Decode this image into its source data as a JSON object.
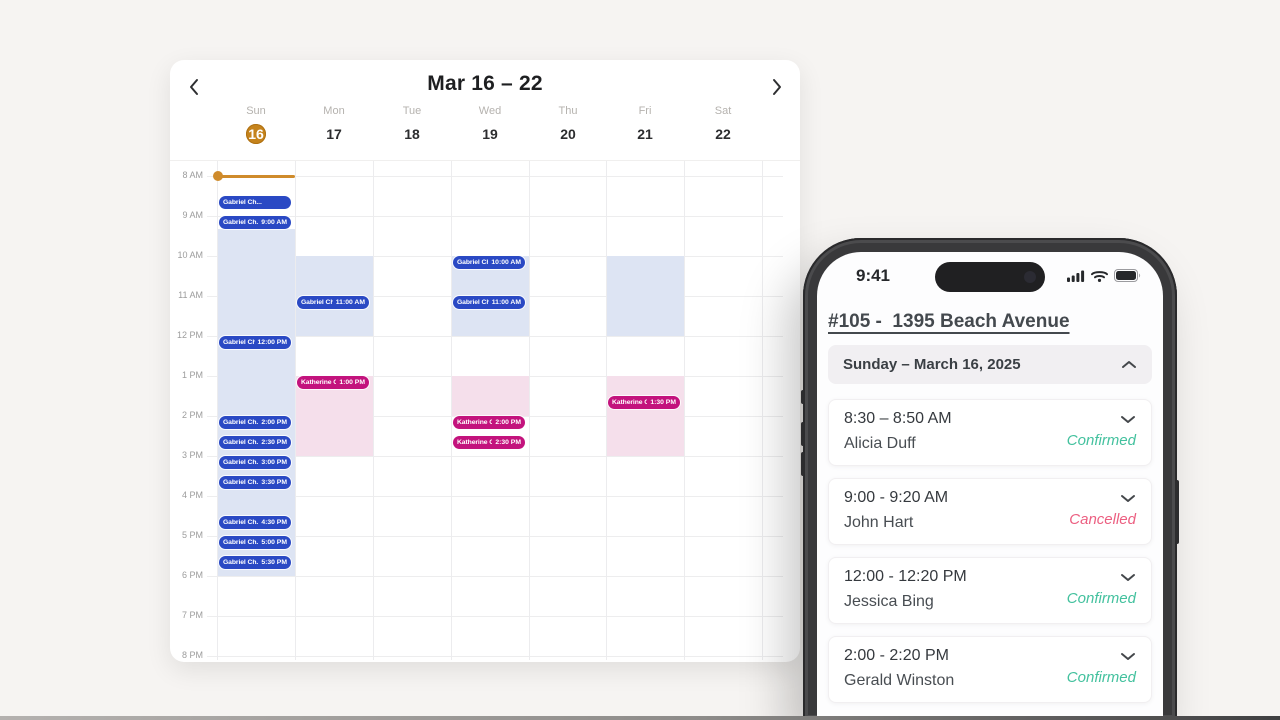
{
  "colors": {
    "accent_orange": "#cf8b2b",
    "event_blue": "#2a49c4",
    "event_magenta": "#c3137d",
    "band_blue": "#dde4f3",
    "band_pink": "#f5dfeb",
    "status_confirmed": "#43c19e",
    "status_cancelled": "#ec5f81",
    "active_day_badge": "#c5831c"
  },
  "calendar": {
    "title": "Mar 16 – 22",
    "prev_icon": "chevron-left",
    "next_icon": "chevron-right",
    "days": [
      {
        "name": "Sun",
        "number": "16",
        "active": true
      },
      {
        "name": "Mon",
        "number": "17",
        "active": false
      },
      {
        "name": "Tue",
        "number": "18",
        "active": false
      },
      {
        "name": "Wed",
        "number": "19",
        "active": false
      },
      {
        "name": "Thu",
        "number": "20",
        "active": false
      },
      {
        "name": "Fri",
        "number": "21",
        "active": false
      },
      {
        "name": "Sat",
        "number": "22",
        "active": false
      }
    ],
    "hours": [
      "8 AM",
      "9 AM",
      "10 AM",
      "11 AM",
      "12 PM",
      "1 PM",
      "2 PM",
      "3 PM",
      "4 PM",
      "5 PM",
      "6 PM",
      "7 PM",
      "8 PM"
    ],
    "now_indicator": {
      "day": "Sun",
      "time": "8:00"
    },
    "availability_bands": [
      {
        "day": "Sun",
        "start": "9:20",
        "end": "18:00",
        "kind": "blue"
      },
      {
        "day": "Mon",
        "start": "10:00",
        "end": "12:00",
        "kind": "blue"
      },
      {
        "day": "Mon",
        "start": "13:00",
        "end": "15:00",
        "kind": "pink"
      },
      {
        "day": "Wed",
        "start": "10:00",
        "end": "12:00",
        "kind": "blue"
      },
      {
        "day": "Wed",
        "start": "13:00",
        "end": "14:00",
        "kind": "pink"
      },
      {
        "day": "Fri",
        "start": "10:00",
        "end": "12:00",
        "kind": "blue"
      },
      {
        "day": "Fri",
        "start": "13:00",
        "end": "15:00",
        "kind": "pink"
      }
    ],
    "events": [
      {
        "day": "Sun",
        "start": "8:30",
        "title": "Gabriel Ch...",
        "time_label": "",
        "kind": "blue"
      },
      {
        "day": "Sun",
        "start": "9:00",
        "title": "Gabriel Ch...",
        "time_label": "9:00 AM",
        "kind": "blue"
      },
      {
        "day": "Sun",
        "start": "12:00",
        "title": "Gabriel Ch...",
        "time_label": "12:00 PM",
        "kind": "blue"
      },
      {
        "day": "Sun",
        "start": "14:00",
        "title": "Gabriel Ch...",
        "time_label": "2:00 PM",
        "kind": "blue"
      },
      {
        "day": "Sun",
        "start": "14:30",
        "title": "Gabriel Ch...",
        "time_label": "2:30 PM",
        "kind": "blue"
      },
      {
        "day": "Sun",
        "start": "15:00",
        "title": "Gabriel Ch...",
        "time_label": "3:00 PM",
        "kind": "blue"
      },
      {
        "day": "Sun",
        "start": "15:30",
        "title": "Gabriel Ch...",
        "time_label": "3:30 PM",
        "kind": "blue"
      },
      {
        "day": "Sun",
        "start": "16:30",
        "title": "Gabriel Ch...",
        "time_label": "4:30 PM",
        "kind": "blue"
      },
      {
        "day": "Sun",
        "start": "17:00",
        "title": "Gabriel Ch...",
        "time_label": "5:00 PM",
        "kind": "blue"
      },
      {
        "day": "Sun",
        "start": "17:30",
        "title": "Gabriel Ch...",
        "time_label": "5:30 PM",
        "kind": "blue"
      },
      {
        "day": "Mon",
        "start": "11:00",
        "title": "Gabriel Ch...",
        "time_label": "11:00 AM",
        "kind": "blue"
      },
      {
        "day": "Mon",
        "start": "13:00",
        "title": "Katherine Co...",
        "time_label": "1:00 PM",
        "kind": "magenta"
      },
      {
        "day": "Wed",
        "start": "10:00",
        "title": "Gabriel Ch...",
        "time_label": "10:00 AM",
        "kind": "blue"
      },
      {
        "day": "Wed",
        "start": "11:00",
        "title": "Gabriel Ch...",
        "time_label": "11:00 AM",
        "kind": "blue"
      },
      {
        "day": "Wed",
        "start": "14:00",
        "title": "Katherine Co...",
        "time_label": "2:00 PM",
        "kind": "magenta"
      },
      {
        "day": "Wed",
        "start": "14:30",
        "title": "Katherine Co...",
        "time_label": "2:30 PM",
        "kind": "magenta"
      },
      {
        "day": "Fri",
        "start": "13:30",
        "title": "Katherine Co...",
        "time_label": "1:30 PM",
        "kind": "magenta"
      }
    ]
  },
  "phone": {
    "status_time": "9:41",
    "status_icons": [
      "signal-icon",
      "wifi-icon",
      "battery-icon"
    ],
    "header_title": "#105 -  1395 Beach Avenue",
    "day_section": {
      "label": "Sunday – March 16, 2025",
      "collapse_icon": "chevron-up"
    },
    "appointments": [
      {
        "time_range": "8:30 – 8:50 AM",
        "client": "Alicia Duff",
        "status": "Confirmed",
        "status_kind": "confirmed"
      },
      {
        "time_range": "9:00 - 9:20 AM",
        "client": "John Hart",
        "status": "Cancelled",
        "status_kind": "cancelled"
      },
      {
        "time_range": "12:00 - 12:20 PM",
        "client": "Jessica Bing",
        "status": "Confirmed",
        "status_kind": "confirmed"
      },
      {
        "time_range": "2:00 - 2:20 PM",
        "client": "Gerald Winston",
        "status": "Confirmed",
        "status_kind": "confirmed"
      }
    ]
  }
}
